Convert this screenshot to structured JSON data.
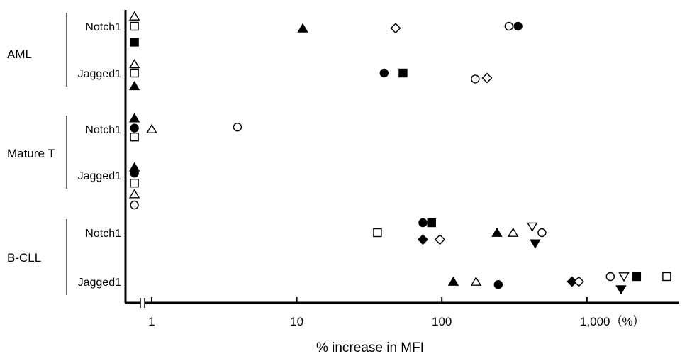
{
  "chart_data": {
    "type": "scatter",
    "xlabel": "% increase in MFI",
    "x_scale": "log",
    "xlim": [
      0.7,
      4200
    ],
    "x_axis_break": true,
    "grid": false,
    "x_ticks": [
      {
        "value": 1,
        "label": "1"
      },
      {
        "value": 10,
        "label": "10"
      },
      {
        "value": 100,
        "label": "100"
      },
      {
        "value": 1000,
        "label": "1,000（%）"
      }
    ],
    "groups": [
      {
        "name": "AML",
        "rows": [
          {
            "label": "Notch1",
            "points": [
              {
                "x": 0.76,
                "y_offset": -1,
                "marker": "triangle-open"
              },
              {
                "x": 0.76,
                "y_offset": 0,
                "marker": "square-open"
              },
              {
                "x": 0.76,
                "y_offset": 1.6,
                "marker": "square-filled"
              },
              {
                "x": 11,
                "y_offset": 0.2,
                "marker": "triangle-filled"
              },
              {
                "x": 48,
                "y_offset": 0.2,
                "marker": "diamond-open"
              },
              {
                "x": 290,
                "y_offset": 0,
                "marker": "circle-open"
              },
              {
                "x": 335,
                "y_offset": 0,
                "marker": "circle-filled"
              }
            ]
          },
          {
            "label": "Jagged1",
            "points": [
              {
                "x": 0.76,
                "y_offset": -0.9,
                "marker": "triangle-open"
              },
              {
                "x": 0.76,
                "y_offset": 0,
                "marker": "square-open"
              },
              {
                "x": 0.76,
                "y_offset": 1.3,
                "marker": "triangle-filled"
              },
              {
                "x": 40,
                "y_offset": 0,
                "marker": "circle-filled"
              },
              {
                "x": 54,
                "y_offset": 0,
                "marker": "square-filled"
              },
              {
                "x": 170,
                "y_offset": 0.6,
                "marker": "circle-open"
              },
              {
                "x": 205,
                "y_offset": 0.5,
                "marker": "diamond-open"
              }
            ]
          }
        ]
      },
      {
        "name": "Mature T",
        "rows": [
          {
            "label": "Notch1",
            "points": [
              {
                "x": 0.76,
                "y_offset": -1.1,
                "marker": "triangle-filled"
              },
              {
                "x": 0.76,
                "y_offset": -0.1,
                "marker": "circle-filled"
              },
              {
                "x": 0.76,
                "y_offset": 0.8,
                "marker": "square-open"
              },
              {
                "x": 1.0,
                "y_offset": 0,
                "marker": "triangle-open"
              },
              {
                "x": 3.9,
                "y_offset": -0.2,
                "marker": "circle-open"
              }
            ]
          },
          {
            "label": "Jagged1",
            "points": [
              {
                "x": 0.76,
                "y_offset": -0.8,
                "marker": "triangle-filled"
              },
              {
                "x": 0.76,
                "y_offset": -0.2,
                "marker": "circle-filled"
              },
              {
                "x": 0.76,
                "y_offset": 0.8,
                "marker": "square-open"
              },
              {
                "x": 0.76,
                "y_offset": 1.9,
                "marker": "triangle-open"
              },
              {
                "x": 0.76,
                "y_offset": 3.0,
                "marker": "circle-open"
              }
            ]
          }
        ]
      },
      {
        "name": "B-CLL",
        "rows": [
          {
            "label": "Notch1",
            "points": [
              {
                "x": 36,
                "y_offset": 0,
                "marker": "square-open"
              },
              {
                "x": 74,
                "y_offset": -1,
                "marker": "circle-filled"
              },
              {
                "x": 85,
                "y_offset": -1,
                "marker": "square-filled"
              },
              {
                "x": 74,
                "y_offset": 0.7,
                "marker": "diamond-filled"
              },
              {
                "x": 97,
                "y_offset": 0.7,
                "marker": "diamond-open"
              },
              {
                "x": 240,
                "y_offset": 0,
                "marker": "triangle-filled"
              },
              {
                "x": 310,
                "y_offset": 0,
                "marker": "triangle-open"
              },
              {
                "x": 420,
                "y_offset": -0.6,
                "marker": "triangle-down-open"
              },
              {
                "x": 490,
                "y_offset": 0,
                "marker": "circle-open"
              },
              {
                "x": 440,
                "y_offset": 1.1,
                "marker": "triangle-down-filled"
              }
            ]
          },
          {
            "label": "Jagged1",
            "points": [
              {
                "x": 120,
                "y_offset": 0,
                "marker": "triangle-filled"
              },
              {
                "x": 172,
                "y_offset": 0,
                "marker": "triangle-open"
              },
              {
                "x": 245,
                "y_offset": 0.3,
                "marker": "circle-filled"
              },
              {
                "x": 790,
                "y_offset": 0,
                "marker": "diamond-filled"
              },
              {
                "x": 880,
                "y_offset": 0,
                "marker": "diamond-open"
              },
              {
                "x": 1450,
                "y_offset": -0.5,
                "marker": "circle-open"
              },
              {
                "x": 1800,
                "y_offset": -0.5,
                "marker": "triangle-down-open"
              },
              {
                "x": 2200,
                "y_offset": -0.5,
                "marker": "square-filled"
              },
              {
                "x": 3550,
                "y_offset": -0.5,
                "marker": "square-open"
              },
              {
                "x": 1720,
                "y_offset": 0.8,
                "marker": "triangle-down-filled"
              }
            ]
          }
        ]
      }
    ]
  }
}
